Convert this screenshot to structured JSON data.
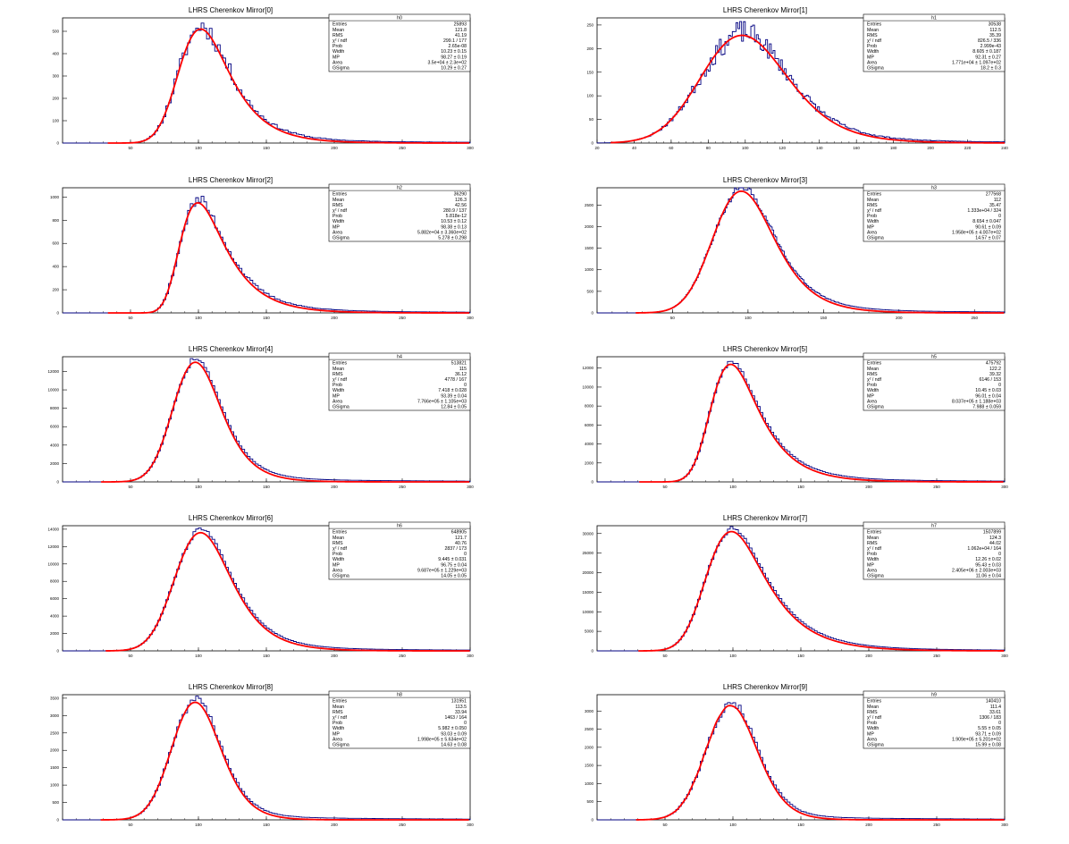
{
  "colors": {
    "histogram": "#000080",
    "fit": "#ff0000",
    "frame": "#000000",
    "background": "#ffffff"
  },
  "stats_labels": [
    "Entries",
    "Mean",
    "RMS",
    "χ² / ndf",
    "Prob",
    "Width",
    "MP",
    "Area",
    "GSigma"
  ],
  "chart_data": [
    {
      "type": "line",
      "title": "LHRS Cherenkov Mirror[0]",
      "hist_name": "h0",
      "xlim": [
        0,
        300
      ],
      "ylim": [
        0,
        560
      ],
      "xticks": [
        50,
        100,
        150,
        200,
        250,
        300
      ],
      "yticks": [
        0,
        100,
        200,
        300,
        400,
        500
      ],
      "stats": [
        "25893",
        "121.8",
        "41.19",
        "299.1 / 177",
        "2.65e-08",
        "10.23 ± 0.15",
        "98.27 ± 0.19",
        "3.5e+04 ± 2.3e+02",
        "10.29 ± 0.27"
      ],
      "fit": {
        "mp": 98.27,
        "width": 10.23,
        "gsigma": 10.29,
        "peak": 510
      },
      "noise": 0.09,
      "seed": 11,
      "bins": 150
    },
    {
      "type": "line",
      "title": "LHRS Cherenkov Mirror[1]",
      "hist_name": "h1",
      "xlim": [
        20,
        240
      ],
      "ylim": [
        0,
        265
      ],
      "xticks": [
        20,
        40,
        60,
        80,
        100,
        120,
        140,
        160,
        180,
        200,
        220,
        240
      ],
      "yticks": [
        0,
        50,
        100,
        150,
        200,
        250
      ],
      "stats": [
        "30538",
        "112.5",
        "35.39",
        "826.5 / 336",
        "2.999e-43",
        "8.605 ± 0.187",
        "92.31 ± 0.27",
        "1.771e+04 ± 1.097e+02",
        "18.2 ± 0.3"
      ],
      "fit": {
        "mp": 92.31,
        "width": 8.605,
        "gsigma": 18.2,
        "peak": 228
      },
      "noise": 0.1,
      "seed": 23,
      "bins": 220
    },
    {
      "type": "line",
      "title": "LHRS Cherenkov Mirror[2]",
      "hist_name": "h2",
      "xlim": [
        0,
        300
      ],
      "ylim": [
        0,
        1080
      ],
      "xticks": [
        50,
        100,
        150,
        200,
        250,
        300
      ],
      "yticks": [
        0,
        200,
        400,
        600,
        800,
        1000
      ],
      "stats": [
        "36290",
        "126.3",
        "42.56",
        "280.9 / 137",
        "5.818e-12",
        "10.53 ± 0.12",
        "98.38 ± 0.13",
        "5.882e+04 ± 3.360e+02",
        "5.278 ± 0.298"
      ],
      "fit": {
        "mp": 98.38,
        "width": 10.53,
        "gsigma": 5.278,
        "peak": 950
      },
      "noise": 0.05,
      "seed": 37,
      "bins": 150
    },
    {
      "type": "line",
      "title": "LHRS Cherenkov Mirror[3]",
      "hist_name": "h3",
      "xlim": [
        0,
        270
      ],
      "ylim": [
        0,
        2900
      ],
      "xticks": [
        50,
        100,
        150,
        200,
        250
      ],
      "yticks": [
        0,
        500,
        1000,
        1500,
        2000,
        2500
      ],
      "stats": [
        "277568",
        "112",
        "35.47",
        "1.333e+04 / 324",
        "0",
        "8.654 ± 0.047",
        "90.61 ± 0.09",
        "1.958e+05 ± 4.007e+02",
        "14.57 ± 0.07"
      ],
      "fit": {
        "mp": 90.61,
        "width": 8.654,
        "gsigma": 14.57,
        "peak": 2820
      },
      "noise": 0.03,
      "seed": 41,
      "bins": 270
    },
    {
      "type": "line",
      "title": "LHRS Cherenkov Mirror[4]",
      "hist_name": "h4",
      "xlim": [
        0,
        300
      ],
      "ylim": [
        0,
        13600
      ],
      "xticks": [
        50,
        100,
        150,
        200,
        250,
        300
      ],
      "yticks": [
        0,
        2000,
        4000,
        6000,
        8000,
        10000,
        12000
      ],
      "stats": [
        "513821",
        "115",
        "36.12",
        "4778 / 167",
        "0",
        "7.418 ± 0.028",
        "93.39 ± 0.04",
        "7.766e+05 ± 1.105e+03",
        "12.84 ± 0.05"
      ],
      "fit": {
        "mp": 93.39,
        "width": 7.418,
        "gsigma": 12.84,
        "peak": 13000
      },
      "noise": 0.015,
      "seed": 53,
      "bins": 150
    },
    {
      "type": "line",
      "title": "LHRS Cherenkov Mirror[5]",
      "hist_name": "h5",
      "xlim": [
        0,
        300
      ],
      "ylim": [
        0,
        13200
      ],
      "xticks": [
        50,
        100,
        150,
        200,
        250,
        300
      ],
      "yticks": [
        0,
        2000,
        4000,
        6000,
        8000,
        10000,
        12000
      ],
      "stats": [
        "475792",
        "122.2",
        "39.32",
        "6146 / 153",
        "0",
        "10.45 ± 0.03",
        "96.01 ± 0.04",
        "8.037e+05 ± 1.188e+03",
        "7.988 ± 0.059"
      ],
      "fit": {
        "mp": 96.01,
        "width": 10.45,
        "gsigma": 7.988,
        "peak": 12400
      },
      "noise": 0.015,
      "seed": 67,
      "bins": 150
    },
    {
      "type": "line",
      "title": "LHRS Cherenkov Mirror[6]",
      "hist_name": "h6",
      "xlim": [
        0,
        300
      ],
      "ylim": [
        0,
        14400
      ],
      "xticks": [
        50,
        100,
        150,
        200,
        250,
        300
      ],
      "yticks": [
        0,
        2000,
        4000,
        6000,
        8000,
        10000,
        12000,
        14000
      ],
      "stats": [
        "648905",
        "121.7",
        "40.76",
        "2837 / 173",
        "0",
        "9.445 ± 0.031",
        "96.75 ± 0.04",
        "9.687e+05 ± 1.229e+03",
        "14.05 ± 0.05"
      ],
      "fit": {
        "mp": 96.75,
        "width": 9.445,
        "gsigma": 14.05,
        "peak": 13600
      },
      "noise": 0.012,
      "seed": 71,
      "bins": 150
    },
    {
      "type": "line",
      "title": "LHRS Cherenkov Mirror[7]",
      "hist_name": "h7",
      "xlim": [
        0,
        300
      ],
      "ylim": [
        0,
        32000
      ],
      "xticks": [
        50,
        100,
        150,
        200,
        250,
        300
      ],
      "yticks": [
        0,
        5000,
        10000,
        15000,
        20000,
        25000,
        30000
      ],
      "stats": [
        "1507899",
        "124.3",
        "44.02",
        "1.062e+04 / 164",
        "0",
        "12.26 ± 0.02",
        "95.43 ± 0.03",
        "2.405e+06 ± 2.003e+03",
        "11.06 ± 0.04"
      ],
      "fit": {
        "mp": 95.43,
        "width": 12.26,
        "gsigma": 11.06,
        "peak": 30500
      },
      "noise": 0.01,
      "seed": 83,
      "bins": 150
    },
    {
      "type": "line",
      "title": "LHRS Cherenkov Mirror[8]",
      "hist_name": "h8",
      "xlim": [
        0,
        300
      ],
      "ylim": [
        0,
        3600
      ],
      "xticks": [
        50,
        100,
        150,
        200,
        250,
        300
      ],
      "yticks": [
        0,
        500,
        1000,
        1500,
        2000,
        2500,
        3000,
        3500
      ],
      "stats": [
        "131951",
        "113.5",
        "33.94",
        "1463 / 164",
        "0",
        "5.982 ± 0.050",
        "93.03 ± 0.09",
        "1.998e+05 ± 5.634e+02",
        "14.63 ± 0.08"
      ],
      "fit": {
        "mp": 93.03,
        "width": 5.982,
        "gsigma": 14.63,
        "peak": 3380
      },
      "noise": 0.03,
      "seed": 97,
      "bins": 150
    },
    {
      "type": "line",
      "title": "LHRS Cherenkov Mirror[9]",
      "hist_name": "h9",
      "xlim": [
        0,
        300
      ],
      "ylim": [
        0,
        3450
      ],
      "xticks": [
        50,
        100,
        150,
        200,
        250,
        300
      ],
      "yticks": [
        0,
        500,
        1000,
        1500,
        2000,
        2500,
        3000
      ],
      "stats": [
        "140410",
        "111.4",
        "33.61",
        "1306 / 183",
        "0",
        "5.55 ± 0.05",
        "93.71 ± 0.09",
        "1.909e+05 ± 5.201e+02",
        "15.99 ± 0.08"
      ],
      "fit": {
        "mp": 93.71,
        "width": 5.55,
        "gsigma": 15.99,
        "peak": 3150
      },
      "noise": 0.03,
      "seed": 101,
      "bins": 150
    }
  ]
}
